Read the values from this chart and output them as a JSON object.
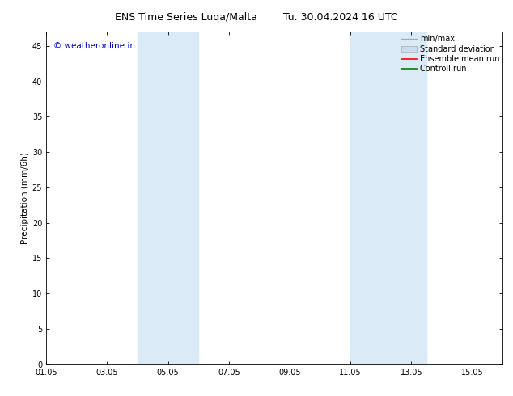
{
  "title_left": "ENS Time Series Luqa/Malta",
  "title_right": "Tu. 30.04.2024 16 UTC",
  "ylabel": "Precipitation (mm/6h)",
  "ylim": [
    0,
    47
  ],
  "yticks": [
    0,
    5,
    10,
    15,
    20,
    25,
    30,
    35,
    40,
    45
  ],
  "xtick_labels": [
    "01.05",
    "03.05",
    "05.05",
    "07.05",
    "09.05",
    "11.05",
    "13.05",
    "15.05"
  ],
  "xtick_positions": [
    1,
    3,
    5,
    7,
    9,
    11,
    13,
    15
  ],
  "xlim": [
    1,
    16
  ],
  "shaded_bands": [
    {
      "x_start": 4.0,
      "x_end": 6.0
    },
    {
      "x_start": 11.0,
      "x_end": 13.5
    }
  ],
  "band_color": "#daeaf6",
  "band_alpha": 1.0,
  "background_color": "#ffffff",
  "watermark_text": "© weatheronline.in",
  "watermark_color": "#0000cc",
  "watermark_fontsize": 7.5,
  "legend_labels": [
    "min/max",
    "Standard deviation",
    "Ensemble mean run",
    "Controll run"
  ],
  "legend_colors": [
    "#aaaaaa",
    "#c8ddf0",
    "#ff0000",
    "#008000"
  ],
  "title_fontsize": 9,
  "axis_label_fontsize": 7.5,
  "tick_fontsize": 7,
  "legend_fontsize": 7
}
